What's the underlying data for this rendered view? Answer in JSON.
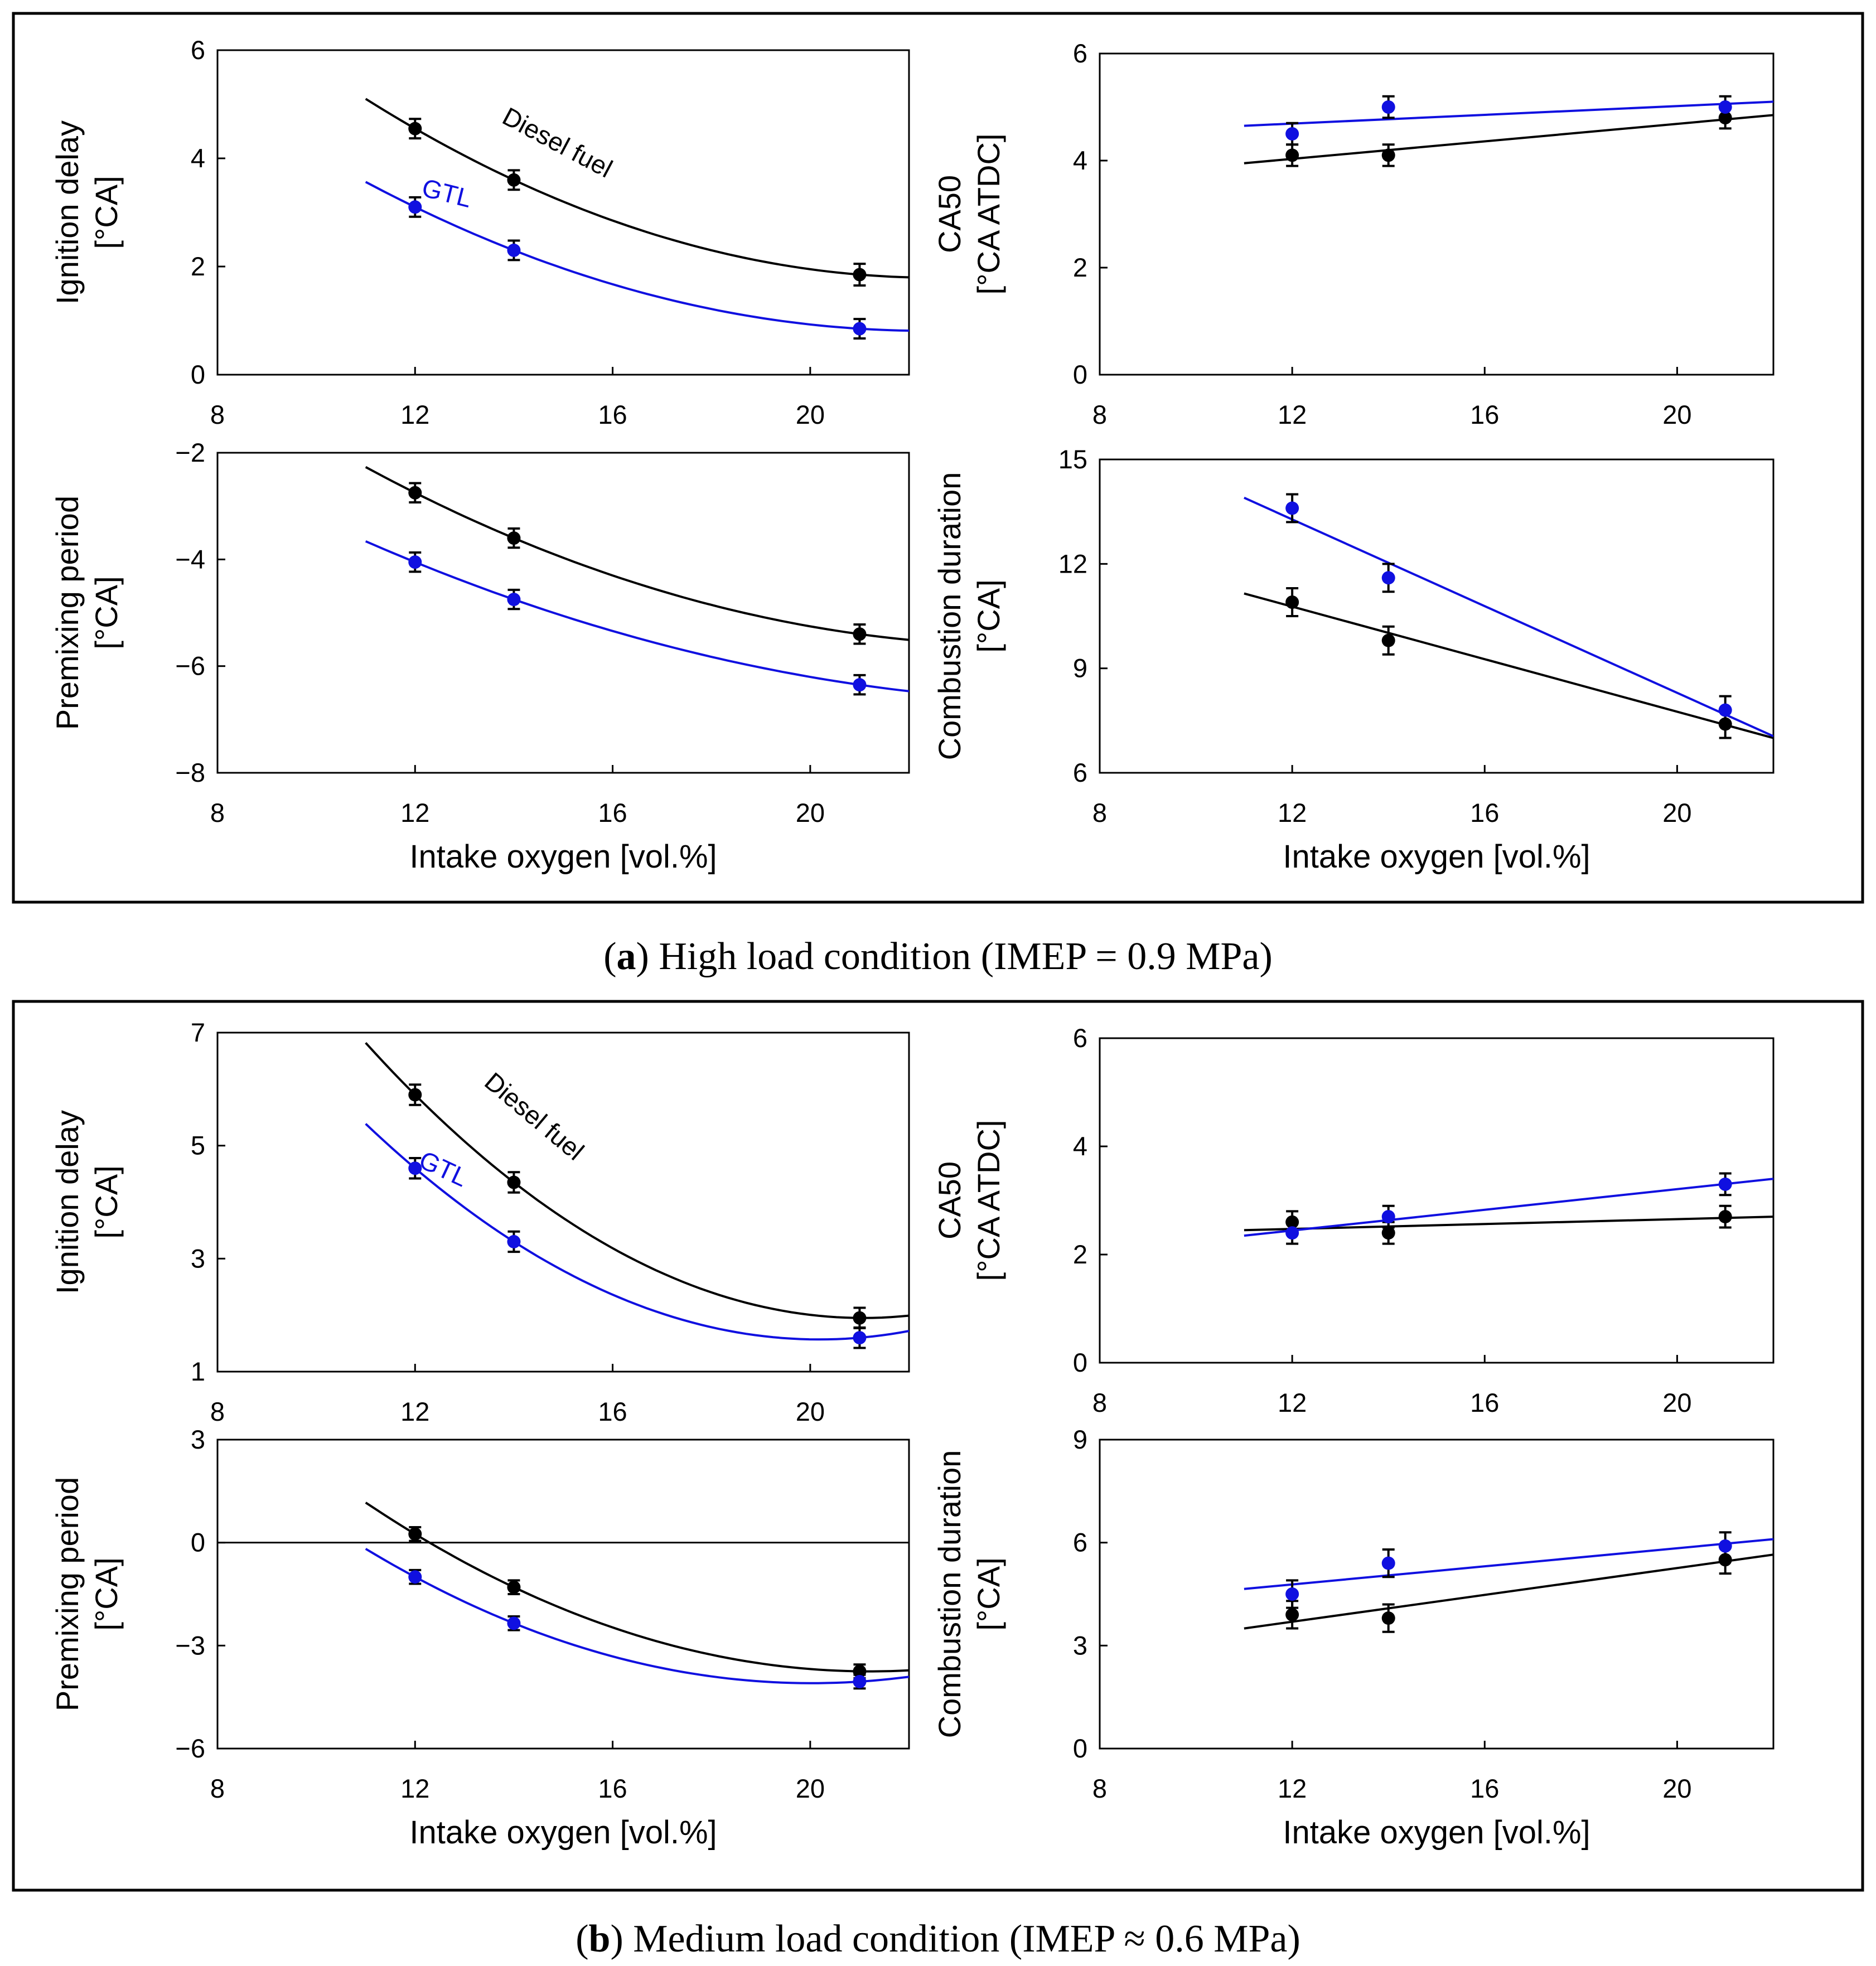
{
  "captions": {
    "a": {
      "open": "(",
      "letter": "a",
      "text": ") High load condition (IMEP = 0.9 MPa)"
    },
    "b": {
      "open": "(",
      "letter": "b",
      "text": ") Medium load condition (IMEP ≈ 0.6 MPa)"
    }
  },
  "colors": {
    "diesel": "#000000",
    "gtl": "#1010e0"
  },
  "chart_data": [
    {
      "id": "a1",
      "type": "scatter",
      "panel": "a",
      "ylabel": [
        "Ignition delay",
        "[°CA]"
      ],
      "xlabel": "",
      "xlim": [
        8,
        22
      ],
      "ylim": [
        0,
        6
      ],
      "yticks": [
        0,
        2,
        4,
        6
      ],
      "xticks": [
        8,
        12,
        16,
        20
      ],
      "annotations": [
        {
          "text": "Diesel fuel",
          "series": "diesel",
          "x": 14.8,
          "y": 4.15,
          "rotate": 28
        },
        {
          "text": "GTL",
          "series": "gtl",
          "x": 12.6,
          "y": 3.2,
          "rotate": 14
        }
      ],
      "series": [
        {
          "name": "Diesel fuel",
          "key": "diesel",
          "x": [
            12,
            14,
            21
          ],
          "y": [
            4.55,
            3.6,
            1.85
          ],
          "err": [
            0.18,
            0.18,
            0.2
          ],
          "fit": {
            "kind": "quad",
            "x": [
              12,
              14,
              21
            ],
            "y": [
              4.55,
              3.6,
              1.85
            ],
            "range": [
              11,
              22
            ]
          }
        },
        {
          "name": "GTL",
          "key": "gtl",
          "x": [
            12,
            14,
            21
          ],
          "y": [
            3.1,
            2.3,
            0.85
          ],
          "err": [
            0.18,
            0.18,
            0.18
          ],
          "fit": {
            "kind": "quad",
            "x": [
              12,
              14,
              21
            ],
            "y": [
              3.1,
              2.3,
              0.85
            ],
            "range": [
              11,
              22
            ]
          }
        }
      ]
    },
    {
      "id": "a2",
      "type": "scatter",
      "panel": "a",
      "ylabel": [
        "CA50",
        "[°CA ATDC]"
      ],
      "xlabel": "",
      "xlim": [
        8,
        22
      ],
      "ylim": [
        0,
        6
      ],
      "yticks": [
        0,
        2,
        4,
        6
      ],
      "xticks": [
        8,
        12,
        16,
        20
      ],
      "annotations": [],
      "series": [
        {
          "name": "Diesel fuel",
          "key": "diesel",
          "x": [
            12,
            14,
            21
          ],
          "y": [
            4.1,
            4.1,
            4.8
          ],
          "err": [
            0.2,
            0.2,
            0.2
          ],
          "fit": {
            "kind": "line",
            "x": [
              11,
              22
            ],
            "y": [
              3.95,
              4.85
            ],
            "range": [
              11,
              22
            ]
          }
        },
        {
          "name": "GTL",
          "key": "gtl",
          "x": [
            12,
            14,
            21
          ],
          "y": [
            4.5,
            5.0,
            5.0
          ],
          "err": [
            0.2,
            0.2,
            0.2
          ],
          "fit": {
            "kind": "line",
            "x": [
              11,
              22
            ],
            "y": [
              4.65,
              5.1
            ],
            "range": [
              11,
              22
            ]
          }
        }
      ]
    },
    {
      "id": "a3",
      "type": "scatter",
      "panel": "a",
      "ylabel": [
        "Premixing period",
        "[°CA]"
      ],
      "xlabel": "Intake oxygen [vol.%]",
      "xlim": [
        8,
        22
      ],
      "ylim": [
        -8,
        -2
      ],
      "yticks": [
        -8,
        -6,
        -4,
        -2
      ],
      "xticks": [
        8,
        12,
        16,
        20
      ],
      "annotations": [],
      "series": [
        {
          "name": "Diesel fuel",
          "key": "diesel",
          "x": [
            12,
            14,
            21
          ],
          "y": [
            -2.75,
            -3.6,
            -5.4
          ],
          "err": [
            0.18,
            0.18,
            0.18
          ],
          "fit": {
            "kind": "quad",
            "x": [
              12,
              14,
              21
            ],
            "y": [
              -2.75,
              -3.6,
              -5.4
            ],
            "range": [
              11,
              22
            ]
          }
        },
        {
          "name": "GTL",
          "key": "gtl",
          "x": [
            12,
            14,
            21
          ],
          "y": [
            -4.05,
            -4.75,
            -6.35
          ],
          "err": [
            0.18,
            0.18,
            0.18
          ],
          "fit": {
            "kind": "quad",
            "x": [
              12,
              14,
              21
            ],
            "y": [
              -4.05,
              -4.75,
              -6.35
            ],
            "range": [
              11,
              22
            ]
          }
        }
      ]
    },
    {
      "id": "a4",
      "type": "scatter",
      "panel": "a",
      "ylabel": [
        "Combustion duration",
        "[°CA]"
      ],
      "xlabel": "Intake oxygen [vol.%]",
      "xlim": [
        8,
        22
      ],
      "ylim": [
        6,
        15
      ],
      "yticks": [
        6,
        9,
        12,
        15
      ],
      "xticks": [
        8,
        12,
        16,
        20
      ],
      "annotations": [],
      "series": [
        {
          "name": "Diesel fuel",
          "key": "diesel",
          "x": [
            12,
            14,
            21
          ],
          "y": [
            10.9,
            9.8,
            7.4
          ],
          "err": [
            0.4,
            0.4,
            0.4
          ],
          "fit": {
            "kind": "line",
            "x": [
              11,
              22
            ],
            "y": [
              11.15,
              7.0
            ],
            "range": [
              11,
              22
            ]
          }
        },
        {
          "name": "GTL",
          "key": "gtl",
          "x": [
            12,
            14,
            21
          ],
          "y": [
            13.6,
            11.6,
            7.8
          ],
          "err": [
            0.4,
            0.4,
            0.4
          ],
          "fit": {
            "kind": "line",
            "x": [
              11,
              22
            ],
            "y": [
              13.9,
              7.05
            ],
            "range": [
              11,
              22
            ]
          }
        }
      ]
    },
    {
      "id": "b1",
      "type": "scatter",
      "panel": "b",
      "ylabel": [
        "Ignition delay",
        "[°CA]"
      ],
      "xlabel": "",
      "xlim": [
        8,
        22
      ],
      "ylim": [
        1,
        7
      ],
      "yticks": [
        1,
        3,
        5,
        7
      ],
      "xticks": [
        8,
        12,
        16,
        20
      ],
      "annotations": [
        {
          "text": "Diesel fuel",
          "series": "diesel",
          "x": 14.3,
          "y": 5.4,
          "rotate": 40
        },
        {
          "text": "GTL",
          "series": "gtl",
          "x": 12.5,
          "y": 4.45,
          "rotate": 25
        }
      ],
      "series": [
        {
          "name": "Diesel fuel",
          "key": "diesel",
          "x": [
            12,
            14,
            21
          ],
          "y": [
            5.9,
            4.35,
            1.95
          ],
          "err": [
            0.18,
            0.18,
            0.18
          ],
          "fit": {
            "kind": "quad",
            "x": [
              12,
              14,
              21
            ],
            "y": [
              5.9,
              4.35,
              1.95
            ],
            "range": [
              11,
              22
            ]
          }
        },
        {
          "name": "GTL",
          "key": "gtl",
          "x": [
            12,
            14,
            21
          ],
          "y": [
            4.6,
            3.3,
            1.6
          ],
          "err": [
            0.18,
            0.18,
            0.18
          ],
          "fit": {
            "kind": "quad",
            "x": [
              12,
              14,
              21
            ],
            "y": [
              4.6,
              3.3,
              1.6
            ],
            "range": [
              11,
              22
            ]
          }
        }
      ]
    },
    {
      "id": "b2",
      "type": "scatter",
      "panel": "b",
      "ylabel": [
        "CA50",
        "[°CA ATDC]"
      ],
      "xlabel": "",
      "xlim": [
        8,
        22
      ],
      "ylim": [
        0,
        6
      ],
      "yticks": [
        0,
        2,
        4,
        6
      ],
      "xticks": [
        8,
        12,
        16,
        20
      ],
      "annotations": [],
      "series": [
        {
          "name": "Diesel fuel",
          "key": "diesel",
          "x": [
            12,
            14,
            21
          ],
          "y": [
            2.6,
            2.4,
            2.7
          ],
          "err": [
            0.2,
            0.2,
            0.2
          ],
          "fit": {
            "kind": "line",
            "x": [
              11,
              22
            ],
            "y": [
              2.45,
              2.7
            ],
            "range": [
              11,
              22
            ]
          }
        },
        {
          "name": "GTL",
          "key": "gtl",
          "x": [
            12,
            14,
            21
          ],
          "y": [
            2.4,
            2.7,
            3.3
          ],
          "err": [
            0.2,
            0.2,
            0.2
          ],
          "fit": {
            "kind": "line",
            "x": [
              11,
              22
            ],
            "y": [
              2.35,
              3.4
            ],
            "range": [
              11,
              22
            ]
          }
        }
      ]
    },
    {
      "id": "b3",
      "type": "scatter",
      "panel": "b",
      "ylabel": [
        "Premixing period",
        "[°CA]"
      ],
      "xlabel": "Intake oxygen [vol.%]",
      "xlim": [
        8,
        22
      ],
      "ylim": [
        -6,
        3
      ],
      "yticks": [
        -6,
        -3,
        0,
        3
      ],
      "xticks": [
        8,
        12,
        16,
        20
      ],
      "zeroline": true,
      "annotations": [],
      "series": [
        {
          "name": "Diesel fuel",
          "key": "diesel",
          "x": [
            12,
            14,
            21
          ],
          "y": [
            0.25,
            -1.3,
            -3.75
          ],
          "err": [
            0.2,
            0.2,
            0.2
          ],
          "fit": {
            "kind": "quad",
            "x": [
              12,
              14,
              21
            ],
            "y": [
              0.25,
              -1.3,
              -3.75
            ],
            "range": [
              11,
              22
            ]
          }
        },
        {
          "name": "GTL",
          "key": "gtl",
          "x": [
            12,
            14,
            21
          ],
          "y": [
            -1.0,
            -2.35,
            -4.05
          ],
          "err": [
            0.2,
            0.2,
            0.2
          ],
          "fit": {
            "kind": "quad",
            "x": [
              12,
              14,
              21
            ],
            "y": [
              -1.0,
              -2.35,
              -4.05
            ],
            "range": [
              11,
              22
            ]
          }
        }
      ]
    },
    {
      "id": "b4",
      "type": "scatter",
      "panel": "b",
      "ylabel": [
        "Combustion duration",
        "[°CA]"
      ],
      "xlabel": "Intake oxygen [vol.%]",
      "xlim": [
        8,
        22
      ],
      "ylim": [
        0,
        9
      ],
      "yticks": [
        0,
        3,
        6,
        9
      ],
      "xticks": [
        8,
        12,
        16,
        20
      ],
      "annotations": [],
      "series": [
        {
          "name": "Diesel fuel",
          "key": "diesel",
          "x": [
            12,
            14,
            21
          ],
          "y": [
            3.9,
            3.8,
            5.5
          ],
          "err": [
            0.4,
            0.4,
            0.4
          ],
          "fit": {
            "kind": "line",
            "x": [
              11,
              22
            ],
            "y": [
              3.5,
              5.65
            ],
            "range": [
              11,
              22
            ]
          }
        },
        {
          "name": "GTL",
          "key": "gtl",
          "x": [
            12,
            14,
            21
          ],
          "y": [
            4.5,
            5.4,
            5.9
          ],
          "err": [
            0.4,
            0.4,
            0.4
          ],
          "fit": {
            "kind": "line",
            "x": [
              11,
              22
            ],
            "y": [
              4.65,
              6.1
            ],
            "range": [
              11,
              22
            ]
          }
        }
      ]
    }
  ]
}
